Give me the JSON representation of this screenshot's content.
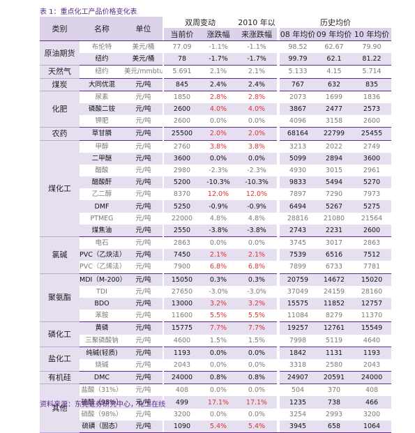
{
  "caption": "表 1：重点化工产品价格变化表",
  "source": "资料来源：东莞证券研究中心，化工在线",
  "header": {
    "category": "类别",
    "name": "名称",
    "unit": "单位",
    "weekly": "双周变动",
    "ytd": "2010 年以",
    "history": "历史均价",
    "current": "当前价",
    "change": "涨跌幅",
    "ytd_change": "来涨跌幅",
    "y08": "08 年均价",
    "y09": "09 年均价",
    "y10": "10 年均价"
  },
  "groups": [
    {
      "category": "原油期货",
      "rows": [
        {
          "name": "布伦特",
          "unit": "美元/桶",
          "current": "77.09",
          "change": "-1.1%",
          "ytd": "-1.1%",
          "y08": "98.52",
          "y09": "62.67",
          "y10": "79.90",
          "shade": false,
          "dim": true,
          "red": false
        },
        {
          "name": "纽约",
          "unit": "美元/桶",
          "current": "78",
          "change": "-1.7%",
          "ytd": "-1.7%",
          "y08": "99.79",
          "y09": "62.1",
          "y10": "81.22",
          "shade": true,
          "dim": false,
          "red": false
        }
      ]
    },
    {
      "category": "天然气",
      "rows": [
        {
          "name": "纽约",
          "unit": "美元/mmbtu",
          "current": "5.691",
          "change": "2.1%",
          "ytd": "2.1%",
          "y08": "5.133",
          "y09": "4.15",
          "y10": "5.714",
          "shade": false,
          "dim": true,
          "red": false
        }
      ]
    },
    {
      "category": "煤炭",
      "rows": [
        {
          "name": "大同优混",
          "unit": "元/吨",
          "current": "845",
          "change": "2.4%",
          "ytd": "2.4%",
          "y08": "767",
          "y09": "632",
          "y10": "835",
          "shade": true,
          "dim": false,
          "red": false
        }
      ]
    },
    {
      "category": "化肥",
      "rows": [
        {
          "name": "尿素",
          "unit": "元/吨",
          "current": "1850",
          "change": "2.8%",
          "ytd": "2.8%",
          "y08": "2073",
          "y09": "1699",
          "y10": "1836",
          "shade": false,
          "dim": true,
          "red": true
        },
        {
          "name": "磷酸二铵",
          "unit": "元/吨",
          "current": "2600",
          "change": "4.0%",
          "ytd": "4.0%",
          "y08": "3867",
          "y09": "2477",
          "y10": "2573",
          "shade": true,
          "dim": false,
          "red": true
        },
        {
          "name": "钾肥",
          "unit": "元/吨",
          "current": "2600",
          "change": "0.0%",
          "ytd": "0.0%",
          "y08": "4096",
          "y09": "3158",
          "y10": "2600",
          "shade": false,
          "dim": true,
          "red": false
        }
      ]
    },
    {
      "category": "农药",
      "rows": [
        {
          "name": "草甘膦",
          "unit": "元/吨",
          "current": "25500",
          "change": "2.0%",
          "ytd": "2.0%",
          "y08": "68164",
          "y09": "22799",
          "y10": "25455",
          "shade": true,
          "dim": false,
          "red": true
        }
      ]
    },
    {
      "category": "煤化工",
      "rows": [
        {
          "name": "甲醇",
          "unit": "元/吨",
          "current": "2760",
          "change": "3.8%",
          "ytd": "3.8%",
          "y08": "3213",
          "y09": "2022",
          "y10": "2749",
          "shade": false,
          "dim": true,
          "red": true
        },
        {
          "name": "二甲醚",
          "unit": "元/吨",
          "current": "3600",
          "change": "0.0%",
          "ytd": "0.0%",
          "y08": "5099",
          "y09": "2894",
          "y10": "3600",
          "shade": true,
          "dim": false,
          "red": false
        },
        {
          "name": "醋酸",
          "unit": "元/吨",
          "current": "2980",
          "change": "-2.3%",
          "ytd": "-2.3%",
          "y08": "4930",
          "y09": "3015",
          "y10": "2961",
          "shade": false,
          "dim": true,
          "red": false
        },
        {
          "name": "醋酸酐",
          "unit": "元/吨",
          "current": "5200",
          "change": "-10.3%",
          "ytd": "-10.3%",
          "y08": "9833",
          "y09": "5494",
          "y10": "5270",
          "shade": true,
          "dim": false,
          "red": false
        },
        {
          "name": "乙二醇",
          "unit": "元/吨",
          "current": "8370",
          "change": "12.0%",
          "ytd": "12.0%",
          "y08": "7897",
          "y09": "7290",
          "y10": "7973",
          "shade": false,
          "dim": true,
          "red": true
        },
        {
          "name": "DMF",
          "unit": "元/吨",
          "current": "5250",
          "change": "-0.9%",
          "ytd": "-0.9%",
          "y08": "6494",
          "y09": "5267",
          "y10": "5275",
          "shade": true,
          "dim": false,
          "red": false
        },
        {
          "name": "PTMEG",
          "unit": "元/吨",
          "current": "22000",
          "change": "4.8%",
          "ytd": "4.8%",
          "y08": "28816",
          "y09": "21080",
          "y10": "21564",
          "shade": false,
          "dim": true,
          "red": false
        },
        {
          "name": "煤焦油",
          "unit": "元/吨",
          "current": "2550",
          "change": "-3.8%",
          "ytd": "-3.8%",
          "y08": "2743",
          "y09": "2231",
          "y10": "2600",
          "shade": true,
          "dim": false,
          "red": false
        }
      ]
    },
    {
      "category": "氯碱",
      "rows": [
        {
          "name": "电石",
          "unit": "元/吨",
          "current": "2863",
          "change": "0.0%",
          "ytd": "0.0%",
          "y08": "3745",
          "y09": "3017",
          "y10": "2863",
          "shade": false,
          "dim": true,
          "red": false
        },
        {
          "name": "PVC（乙炔法）",
          "unit": "元/吨",
          "current": "7450",
          "change": "2.1%",
          "ytd": "2.1%",
          "y08": "7539",
          "y09": "6516",
          "y10": "7512",
          "shade": true,
          "dim": false,
          "red": true
        },
        {
          "name": "PVC（乙烯法）",
          "unit": "元/吨",
          "current": "7900",
          "change": "6.8%",
          "ytd": "6.8%",
          "y08": "7899",
          "y09": "6733",
          "y10": "7781",
          "shade": false,
          "dim": true,
          "red": true
        }
      ]
    },
    {
      "category": "聚氨酯",
      "rows": [
        {
          "name": "MDI（M-200）",
          "unit": "元/吨",
          "current": "15050",
          "change": "0.3%",
          "ytd": "0.3%",
          "y08": "20759",
          "y09": "14672",
          "y10": "15020",
          "shade": true,
          "dim": false,
          "red": false
        },
        {
          "name": "TDI",
          "unit": "元/吨",
          "current": "27650",
          "change": "-3.0%",
          "ytd": "-3.0%",
          "y08": "37049",
          "y09": "24159",
          "y10": "28160",
          "shade": false,
          "dim": true,
          "red": false
        },
        {
          "name": "BDO",
          "unit": "元/吨",
          "current": "13000",
          "change": "3.2%",
          "ytd": "3.2%",
          "y08": "15575",
          "y09": "11852",
          "y10": "12757",
          "shade": true,
          "dim": false,
          "red": true
        },
        {
          "name": "苯胺",
          "unit": "元/吨",
          "current": "11600",
          "change": "5.5%",
          "ytd": "5.5%",
          "y08": "11084",
          "y09": "8279",
          "y10": "11370",
          "shade": false,
          "dim": true,
          "red": true
        }
      ]
    },
    {
      "category": "磷化工",
      "rows": [
        {
          "name": "黄磷",
          "unit": "元/吨",
          "current": "15775",
          "change": "7.7%",
          "ytd": "7.7%",
          "y08": "19257",
          "y09": "12761",
          "y10": "15549",
          "shade": true,
          "dim": false,
          "red": true
        },
        {
          "name": "三聚磷酸钠",
          "unit": "元/吨",
          "current": "4600",
          "change": "1.5%",
          "ytd": "1.5%",
          "y08": "7998",
          "y09": "5119",
          "y10": "4640",
          "shade": false,
          "dim": true,
          "red": false
        }
      ]
    },
    {
      "category": "盐化工",
      "rows": [
        {
          "name": "纯碱(轻质)",
          "unit": "元/吨",
          "current": "1193",
          "change": "0.0%",
          "ytd": "0.0%",
          "y08": "1842",
          "y09": "1131",
          "y10": "1193",
          "shade": true,
          "dim": false,
          "red": false
        },
        {
          "name": "烧碱",
          "unit": "元/吨",
          "current": "2043",
          "change": "0.0%",
          "ytd": "0.0%",
          "y08": "3318",
          "y09": "2580",
          "y10": "2043",
          "shade": false,
          "dim": true,
          "red": false
        }
      ]
    },
    {
      "category": "有机硅",
      "rows": [
        {
          "name": "DMC",
          "unit": "元/吨",
          "current": "24000",
          "change": "0.8%",
          "ytd": "0.8%",
          "y08": "24907",
          "y09": "20591",
          "y10": "24000",
          "shade": true,
          "dim": false,
          "red": false
        }
      ]
    },
    {
      "category": "其他",
      "rows": [
        {
          "name": "盐酸（31%）",
          "unit": "元/吨",
          "current": "408",
          "change": "0.0%",
          "ytd": "0.0%",
          "y08": "504",
          "y09": "370",
          "y10": "408",
          "shade": false,
          "dim": true,
          "red": false
        },
        {
          "name": "硫酸（98%）",
          "unit": "元/吨",
          "current": "499",
          "change": "17.1%",
          "ytd": "17.1%",
          "y08": "1235",
          "y09": "738",
          "y10": "466",
          "shade": true,
          "dim": false,
          "red": true
        },
        {
          "name": "硝酸（98%）",
          "unit": "元/吨",
          "current": "3200",
          "change": "0.0%",
          "ytd": "0.0%",
          "y08": "3254",
          "y09": "2993",
          "y10": "3200",
          "shade": false,
          "dim": true,
          "red": false
        },
        {
          "name": "硫磺（固态）",
          "unit": "元/吨",
          "current": "1090",
          "change": "5.4%",
          "ytd": "5.4%",
          "y08": "3945",
          "y09": "658",
          "y10": "1064",
          "shade": true,
          "dim": false,
          "red": true
        }
      ]
    }
  ]
}
